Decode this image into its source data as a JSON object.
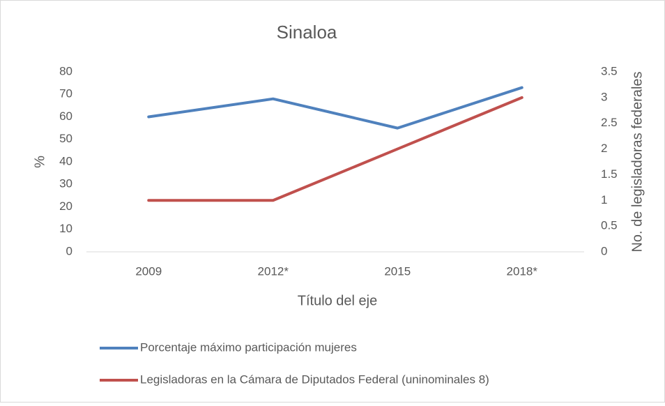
{
  "chart_data": {
    "type": "line",
    "title": "Sinaloa",
    "categories": [
      "2009",
      "2012*",
      "2015",
      "2018*"
    ],
    "series": [
      {
        "name": "Porcentaje máximo participación mujeres",
        "color": "#4f81bd",
        "values": [
          60,
          68,
          55,
          73
        ]
      },
      {
        "name": "Legisladoras en la Cámara de Diputados Federal (uninominales 8)",
        "color": "#c0504d",
        "values": [
          1,
          1,
          2,
          3
        ],
        "axis": "y2"
      }
    ],
    "x_label": "Título del eje",
    "y_label": "%",
    "y2_label": "No. de legisladoras federales",
    "ylim": [
      0,
      80
    ],
    "yticks": [
      0,
      10,
      20,
      30,
      40,
      50,
      60,
      70,
      80
    ],
    "y2lim": [
      0,
      3.5
    ],
    "y2ticks": [
      0,
      0.5,
      1,
      1.5,
      2,
      2.5,
      3,
      3.5
    ],
    "grid": false,
    "legend": "bottom"
  }
}
